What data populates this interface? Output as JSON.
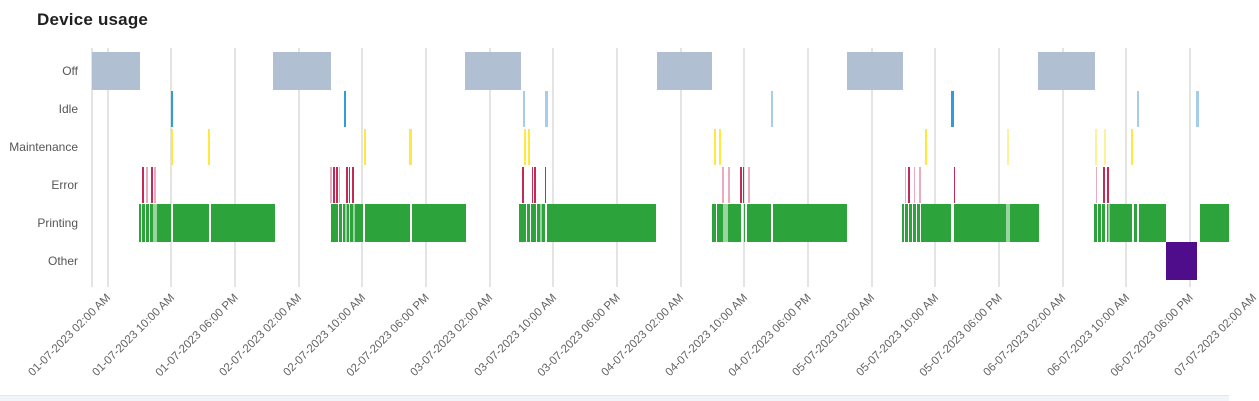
{
  "header": {
    "title": "Device usage"
  },
  "chart_data": {
    "type": "timeline",
    "title": "Device usage",
    "subtitle": "",
    "legend": "none",
    "grid": "vertical",
    "y_categories": [
      "Off",
      "Idle",
      "Maintenance",
      "Error",
      "Printing",
      "Other"
    ],
    "x_axis": {
      "unit": "hours since 01-07-2023 12:00 AM",
      "range_hours": [
        0,
        143
      ],
      "tick_interval_hours": 8,
      "ticks": [
        {
          "hour": 2,
          "label": "01-07-2023 02:00 AM"
        },
        {
          "hour": 10,
          "label": "01-07-2023 10:00 AM"
        },
        {
          "hour": 18,
          "label": "01-07-2023 06:00 PM"
        },
        {
          "hour": 26,
          "label": "02-07-2023 02:00 AM"
        },
        {
          "hour": 34,
          "label": "02-07-2023 10:00 AM"
        },
        {
          "hour": 42,
          "label": "02-07-2023 06:00 PM"
        },
        {
          "hour": 50,
          "label": "03-07-2023 02:00 AM"
        },
        {
          "hour": 58,
          "label": "03-07-2023 10:00 AM"
        },
        {
          "hour": 66,
          "label": "03-07-2023 06:00 PM"
        },
        {
          "hour": 74,
          "label": "04-07-2023 02:00 AM"
        },
        {
          "hour": 82,
          "label": "04-07-2023 10:00 AM"
        },
        {
          "hour": 90,
          "label": "04-07-2023 06:00 PM"
        },
        {
          "hour": 98,
          "label": "05-07-2023 02:00 AM"
        },
        {
          "hour": 106,
          "label": "05-07-2023 10:00 AM"
        },
        {
          "hour": 114,
          "label": "05-07-2023 06:00 PM"
        },
        {
          "hour": 122,
          "label": "06-07-2023 02:00 AM"
        },
        {
          "hour": 130,
          "label": "06-07-2023 10:00 AM"
        },
        {
          "hour": 138,
          "label": "06-07-2023 06:00 PM"
        },
        {
          "hour": 146,
          "label": "07-07-2023 02:00 AM"
        }
      ]
    },
    "series": [
      {
        "name": "Off",
        "row": 0,
        "style": "block",
        "color": "#b0c0d2",
        "alt_color": "#b0c0d2",
        "segments": [
          [
            0,
            6.05
          ],
          [
            22.8,
            30.0
          ],
          [
            46.9,
            53.9
          ],
          [
            71.0,
            77.9
          ],
          [
            94.9,
            101.9
          ],
          [
            118.9,
            126.0
          ]
        ]
      },
      {
        "name": "Idle",
        "row": 1,
        "style": "tick",
        "color": "#2f9dd8",
        "alt_color": "#a5cce9",
        "segments": [
          [
            9.9,
            10.2
          ],
          [
            31.7,
            32.0
          ],
          [
            54.2,
            54.5,
            1
          ],
          [
            57.0,
            57.3,
            1
          ],
          [
            85.4,
            85.65,
            1
          ],
          [
            108.0,
            108.3
          ],
          [
            131.4,
            131.65,
            1
          ],
          [
            138.8,
            139.1,
            1
          ]
        ]
      },
      {
        "name": "Maintenance",
        "row": 2,
        "style": "tick",
        "color": "#ffe93e",
        "alt_color": "#fff296",
        "segments": [
          [
            9.9,
            10.2
          ],
          [
            14.65,
            14.9
          ],
          [
            34.2,
            34.5
          ],
          [
            39.8,
            40.2
          ],
          [
            54.3,
            54.6
          ],
          [
            54.85,
            55.1
          ],
          [
            78.2,
            78.5
          ],
          [
            78.85,
            79.1
          ],
          [
            104.7,
            105.0
          ],
          [
            115.0,
            115.25,
            1
          ],
          [
            126.1,
            126.3,
            1
          ],
          [
            127.2,
            127.4,
            1
          ],
          [
            130.6,
            130.9
          ]
        ]
      },
      {
        "name": "Error",
        "row": 3,
        "style": "tick",
        "color": "#c42a55",
        "alt_color": "#ecaabe",
        "segments": [
          [
            6.3,
            6.5
          ],
          [
            6.85,
            7.0,
            1
          ],
          [
            7.5,
            7.7
          ],
          [
            7.85,
            8.0,
            1
          ],
          [
            29.95,
            30.1,
            1
          ],
          [
            30.3,
            30.45
          ],
          [
            30.7,
            30.85
          ],
          [
            31.05,
            31.2,
            1
          ],
          [
            32.0,
            32.15
          ],
          [
            32.3,
            32.45
          ],
          [
            32.75,
            32.9
          ],
          [
            54.05,
            54.2
          ],
          [
            55.3,
            55.5
          ],
          [
            55.6,
            55.8
          ],
          [
            56.9,
            57.05
          ],
          [
            79.25,
            79.45,
            1
          ],
          [
            79.95,
            80.15,
            1
          ],
          [
            81.5,
            81.7
          ],
          [
            81.8,
            82.0
          ],
          [
            82.5,
            82.7,
            1
          ],
          [
            102.15,
            102.3,
            1
          ],
          [
            102.6,
            102.8
          ],
          [
            103.3,
            103.45,
            1
          ],
          [
            103.95,
            104.1,
            1
          ],
          [
            108.3,
            108.45
          ],
          [
            126.15,
            126.35,
            1
          ],
          [
            127.1,
            127.3
          ],
          [
            127.6,
            127.8
          ]
        ]
      },
      {
        "name": "Printing",
        "row": 4,
        "style": "block",
        "color": "#2da33b",
        "alt_color": "#9ad4a1",
        "segments": [
          [
            5.93,
            6.18
          ],
          [
            6.3,
            6.68
          ],
          [
            6.8,
            7.18
          ],
          [
            7.3,
            7.7
          ],
          [
            7.7,
            8.15,
            1
          ],
          [
            8.15,
            9.9
          ],
          [
            10.2,
            14.75
          ],
          [
            14.95,
            23.0
          ],
          [
            30.1,
            30.5
          ],
          [
            30.6,
            31.0
          ],
          [
            31.1,
            31.5
          ],
          [
            31.6,
            31.8
          ],
          [
            31.8,
            32.05,
            1
          ],
          [
            32.05,
            32.35
          ],
          [
            32.45,
            32.8
          ],
          [
            32.8,
            33.1,
            1
          ],
          [
            33.1,
            34.1
          ],
          [
            34.35,
            39.95
          ],
          [
            40.2,
            47.0
          ],
          [
            53.7,
            54.0
          ],
          [
            54.05,
            54.55
          ],
          [
            54.65,
            55.05
          ],
          [
            55.15,
            55.4
          ],
          [
            55.5,
            55.8
          ],
          [
            55.9,
            56.3
          ],
          [
            56.3,
            56.6,
            1
          ],
          [
            56.6,
            56.95
          ],
          [
            57.25,
            70.9
          ],
          [
            77.95,
            78.4
          ],
          [
            78.5,
            78.9
          ],
          [
            79.0,
            79.35
          ],
          [
            79.35,
            79.9,
            1
          ],
          [
            79.9,
            81.6
          ],
          [
            81.9,
            82.1
          ],
          [
            82.35,
            85.35
          ],
          [
            85.6,
            94.95
          ],
          [
            101.8,
            102.05
          ],
          [
            102.15,
            102.55
          ],
          [
            102.65,
            103.05
          ],
          [
            103.15,
            103.55
          ],
          [
            103.65,
            104.05
          ],
          [
            104.15,
            107.95
          ],
          [
            108.3,
            114.9
          ],
          [
            114.9,
            115.4,
            1
          ],
          [
            115.4,
            119.0
          ],
          [
            125.9,
            126.35
          ],
          [
            126.45,
            126.85
          ],
          [
            126.95,
            127.3
          ],
          [
            127.55,
            127.65
          ],
          [
            127.65,
            127.9,
            1
          ],
          [
            127.9,
            130.7
          ],
          [
            131.0,
            131.3
          ],
          [
            131.6,
            135.0
          ],
          [
            139.2,
            143.0
          ]
        ]
      },
      {
        "name": "Other",
        "row": 5,
        "style": "block",
        "color": "#4f0d8c",
        "alt_color": "#4f0d8c",
        "segments": [
          [
            135.0,
            138.9
          ]
        ]
      }
    ],
    "colors": {
      "grid": "#e4e4e4",
      "title_text": "#1f1f1f",
      "axis_text": "#636363"
    }
  }
}
